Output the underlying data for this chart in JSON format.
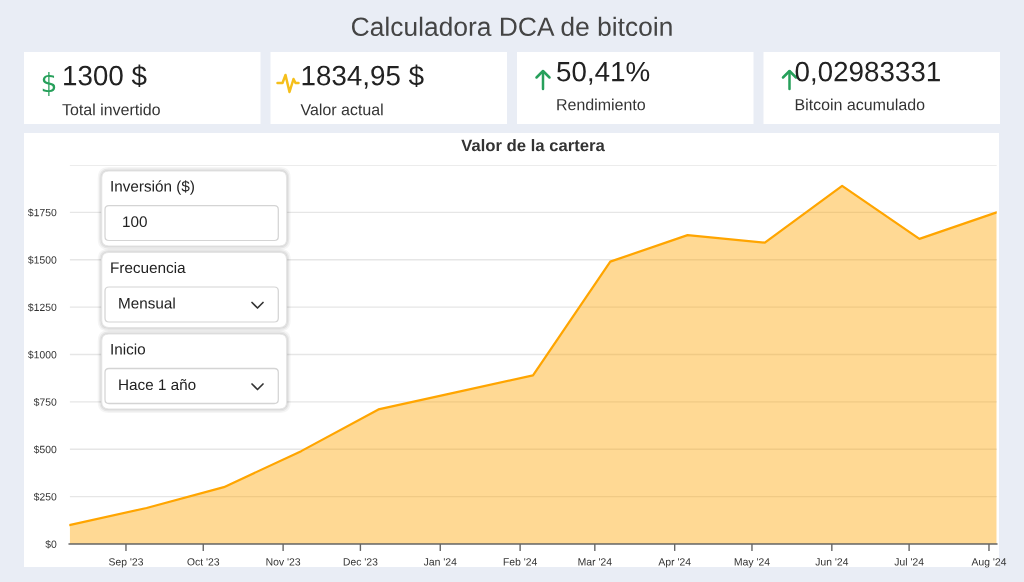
{
  "chart_data": [
    {
      "type": "other",
      "title": "Calculadora DCA de bitcoin",
      "annotations": [
        "1300 $",
        "Total invertido",
        "1834,95 $",
        "Valor actual",
        "50,41%",
        "Rendimiento",
        "0,02983331",
        "Bitcoin acumulado"
      ]
    },
    {
      "type": "area",
      "title": "Valor de la cartera",
      "x": [
        "2023-08-10",
        "2023-09-09",
        "2023-10-09",
        "2023-11-08",
        "2023-12-08",
        "2024-01-07",
        "2024-02-06",
        "2024-03-07",
        "2024-04-06",
        "2024-05-06",
        "2024-06-05",
        "2024-07-05",
        "2024-08-04"
      ],
      "series": [
        {
          "color": "#ffa500",
          "values": [
            100,
            190,
            300,
            490,
            710,
            800,
            890,
            1490,
            1630,
            1590,
            1890,
            1610,
            1750
          ]
        }
      ],
      "xlim": [
        "2023-08-10",
        "2024-08-04"
      ],
      "xticks": [
        {
          "value": "2023-09-01",
          "label": "Sep '23"
        },
        {
          "value": "2023-10-01",
          "label": "Oct '23"
        },
        {
          "value": "2023-11-01",
          "label": "Nov '23"
        },
        {
          "value": "2023-12-01",
          "label": "Dec '23"
        },
        {
          "value": "2024-01-01",
          "label": "Jan '24"
        },
        {
          "value": "2024-02-01",
          "label": "Feb '24"
        },
        {
          "value": "2024-03-01",
          "label": "Mar '24"
        },
        {
          "value": "2024-04-01",
          "label": "Apr '24"
        },
        {
          "value": "2024-05-01",
          "label": "May '24"
        },
        {
          "value": "2024-06-01",
          "label": "Jun '24"
        },
        {
          "value": "2024-07-01",
          "label": "Jul '24"
        },
        {
          "value": "2024-08-01",
          "label": "Aug '24"
        }
      ],
      "ylim": [
        0,
        2000
      ],
      "yticks": [
        {
          "value": 0,
          "label": "$0"
        },
        {
          "value": 250,
          "label": "$250"
        },
        {
          "value": 500,
          "label": "$500"
        },
        {
          "value": 750,
          "label": "$750"
        },
        {
          "value": 1000,
          "label": "$1000"
        },
        {
          "value": 1250,
          "label": "$1250"
        },
        {
          "value": 1500,
          "label": "$1500"
        },
        {
          "value": 1750,
          "label": "$1750"
        },
        {
          "value": 2000,
          "label": null
        }
      ],
      "grid": "y"
    },
    {
      "type": "other",
      "annotations": [
        "Inversión ($)",
        "100",
        "Frecuencia",
        "Mensual",
        "Inicio",
        "Hace 1 año"
      ]
    }
  ]
}
